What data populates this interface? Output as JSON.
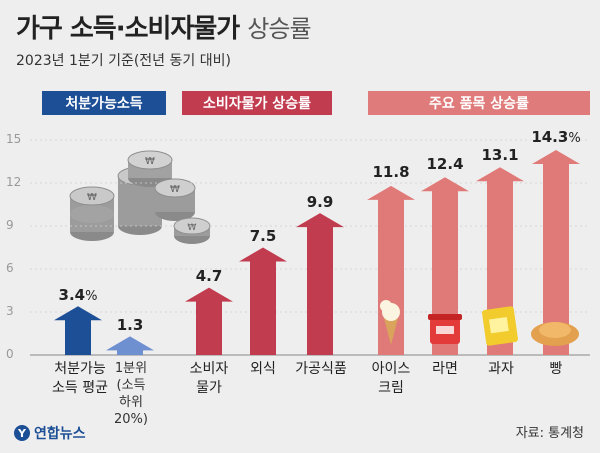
{
  "header": {
    "title_main": "가구 소득·소비자물가",
    "title_sub": "상승률",
    "subtitle": "2023년 1분기 기준(전년 동기 대비)"
  },
  "sections": {
    "disposable_income": "처분가능소득",
    "cpi": "소비자물가 상승률",
    "items": "주요 품목 상승률"
  },
  "chart_data": {
    "type": "bar",
    "ylim": [
      0,
      15
    ],
    "yticks": [
      "0",
      "3",
      "6",
      "9",
      "12",
      "15"
    ],
    "series": [
      {
        "group": "처분가능소득",
        "categories": [
          "처분가능 소득 평균",
          "1분위 (소득 하위 20%)"
        ],
        "values": [
          3.4,
          1.3
        ],
        "labels": [
          "3.4",
          "1.3"
        ],
        "colors": [
          "#1c4f95",
          "#6e8fd0"
        ]
      },
      {
        "group": "소비자물가 상승률",
        "categories": [
          "소비자 물가",
          "외식",
          "가공식품"
        ],
        "values": [
          4.7,
          7.5,
          9.9
        ],
        "labels": [
          "4.7",
          "7.5",
          "9.9"
        ],
        "colors": [
          "#c23c50",
          "#c23c50",
          "#c23c50"
        ]
      },
      {
        "group": "주요 품목 상승률",
        "categories": [
          "아이스 크림",
          "라면",
          "과자",
          "빵"
        ],
        "values": [
          11.8,
          12.4,
          13.1,
          14.3
        ],
        "labels": [
          "11.8",
          "12.4",
          "13.1",
          "14.3"
        ],
        "colors": [
          "#e07a78",
          "#e07a78",
          "#e07a78",
          "#e07a78"
        ]
      }
    ],
    "unit": "%"
  },
  "xlabels": {
    "income_avg": [
      "처분가능",
      "소득 평균"
    ],
    "income_q1": [
      "1분위",
      "(소득",
      "하위",
      "20%)"
    ],
    "cpi": [
      "소비자",
      "물가"
    ],
    "dining": [
      "외식"
    ],
    "processed": [
      "가공식품"
    ],
    "icecream": [
      "아이스",
      "크림"
    ],
    "ramen": [
      "라면"
    ],
    "snack": [
      "과자"
    ],
    "bread": [
      "빵"
    ]
  },
  "footer": {
    "logo": "연합뉴스",
    "logo_mark": "Y",
    "source": "자료: 통계청"
  },
  "colors": {
    "income_avg": "#1c4f95",
    "income_q1": "#6e8fd0",
    "cpi": "#c23c50",
    "items": "#e07a78"
  }
}
